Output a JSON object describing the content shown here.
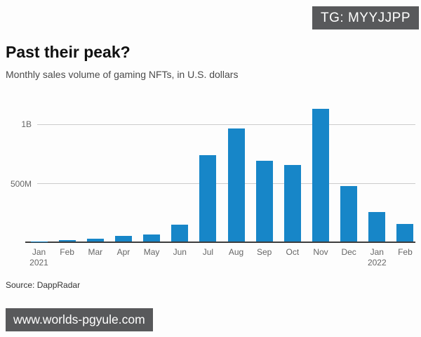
{
  "badge": {
    "text": "TG: MYYJJPP",
    "bg_color": "#58595b",
    "text_color": "#ffffff"
  },
  "header": {
    "title": "Past their peak?",
    "subtitle": "Monthly sales volume of gaming NFTs, in U.S. dollars"
  },
  "chart_data": {
    "type": "bar",
    "title": "Past their peak?",
    "subtitle": "Monthly sales volume of gaming NFTs, in U.S. dollars",
    "unit": "U.S. dollars",
    "categories": [
      "Jan",
      "Feb",
      "Mar",
      "Apr",
      "May",
      "Jun",
      "Jul",
      "Aug",
      "Sep",
      "Oct",
      "Nov",
      "Dec",
      "Jan",
      "Feb"
    ],
    "year_sublabels": {
      "0": "2021",
      "12": "2022"
    },
    "values_millions_usd": [
      2,
      12,
      26,
      50,
      62,
      145,
      730,
      950,
      680,
      645,
      1120,
      470,
      250,
      150
    ],
    "yticks": [
      {
        "label": "1B",
        "value_millions": 1000
      },
      {
        "label": "500M",
        "value_millions": 500
      }
    ],
    "ylim_millions": [
      0,
      1160
    ],
    "grid": true,
    "legend": false,
    "bar_color": "#1786c8"
  },
  "footer": {
    "source": "Source: DappRadar"
  },
  "watermark": {
    "text": "www.worlds-pgyule.com",
    "bg_color": "#58595b",
    "text_color": "#ffffff"
  },
  "colors": {
    "axis_line": "#3d3d3d",
    "gridline": "#cccccc",
    "tick_label": "#666666",
    "title": "#111111",
    "subtitle": "#4a4a4a",
    "source": "#333333",
    "background": "#fdfdfd"
  }
}
